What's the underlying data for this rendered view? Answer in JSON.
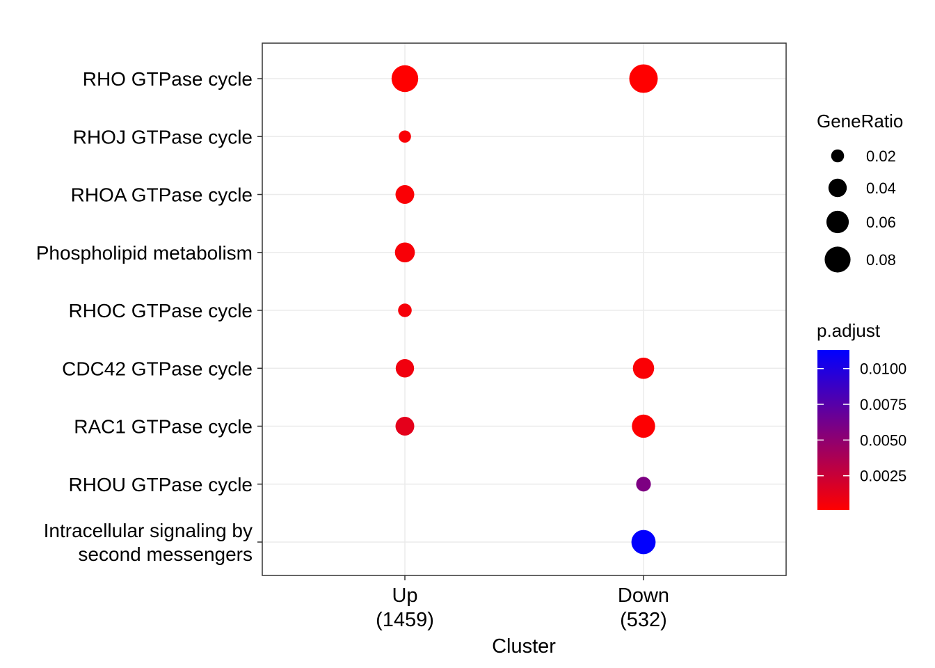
{
  "chart_data": {
    "type": "scatter",
    "xlabel": "Cluster",
    "ylabel": "",
    "categories_x": [
      "Up\n(1459)",
      "Down\n(532)"
    ],
    "categories_y": [
      "RHO GTPase cycle",
      "RHOJ GTPase cycle",
      "RHOA GTPase cycle",
      "Phospholipid metabolism",
      "RHOC GTPase cycle",
      "CDC42 GTPase cycle",
      "RAC1 GTPase cycle",
      "RHOU GTPase cycle",
      "Intracellular signaling by\nsecond messengers"
    ],
    "points": [
      {
        "x": "Up",
        "y": "RHO GTPase cycle",
        "gene_ratio": 0.085,
        "p_adjust": 0.0001
      },
      {
        "x": "Up",
        "y": "RHOJ GTPase cycle",
        "gene_ratio": 0.018,
        "p_adjust": 0.0003
      },
      {
        "x": "Up",
        "y": "RHOA GTPase cycle",
        "gene_ratio": 0.042,
        "p_adjust": 0.0003
      },
      {
        "x": "Up",
        "y": "Phospholipid metabolism",
        "gene_ratio": 0.047,
        "p_adjust": 0.0004
      },
      {
        "x": "Up",
        "y": "RHOC GTPase cycle",
        "gene_ratio": 0.022,
        "p_adjust": 0.0005
      },
      {
        "x": "Up",
        "y": "CDC42 GTPase cycle",
        "gene_ratio": 0.04,
        "p_adjust": 0.0007
      },
      {
        "x": "Up",
        "y": "RAC1 GTPase cycle",
        "gene_ratio": 0.042,
        "p_adjust": 0.0013
      },
      {
        "x": "Down",
        "y": "RHO GTPase cycle",
        "gene_ratio": 0.097,
        "p_adjust": 0.0001
      },
      {
        "x": "Down",
        "y": "CDC42 GTPase cycle",
        "gene_ratio": 0.054,
        "p_adjust": 0.0003
      },
      {
        "x": "Down",
        "y": "RAC1 GTPase cycle",
        "gene_ratio": 0.064,
        "p_adjust": 0.0002
      },
      {
        "x": "Down",
        "y": "RHOU GTPase cycle",
        "gene_ratio": 0.026,
        "p_adjust": 0.0058
      },
      {
        "x": "Down",
        "y": "Intracellular signaling by\nsecond messengers",
        "gene_ratio": 0.07,
        "p_adjust": 0.0112
      }
    ],
    "size_legend": {
      "title": "GeneRatio",
      "breaks": [
        0.02,
        0.04,
        0.06,
        0.08
      ],
      "labels": [
        "0.02",
        "0.04",
        "0.06",
        "0.08"
      ]
    },
    "color_legend": {
      "title": "p.adjust",
      "range": [
        0.0001,
        0.0113
      ],
      "breaks": [
        0.0025,
        0.005,
        0.0075,
        0.01
      ],
      "labels": [
        "0.0025",
        "0.0050",
        "0.0075",
        "0.0100"
      ],
      "low_color": "#ff0000",
      "high_color": "#0000ff"
    },
    "grid": true,
    "legend_position": "right"
  }
}
